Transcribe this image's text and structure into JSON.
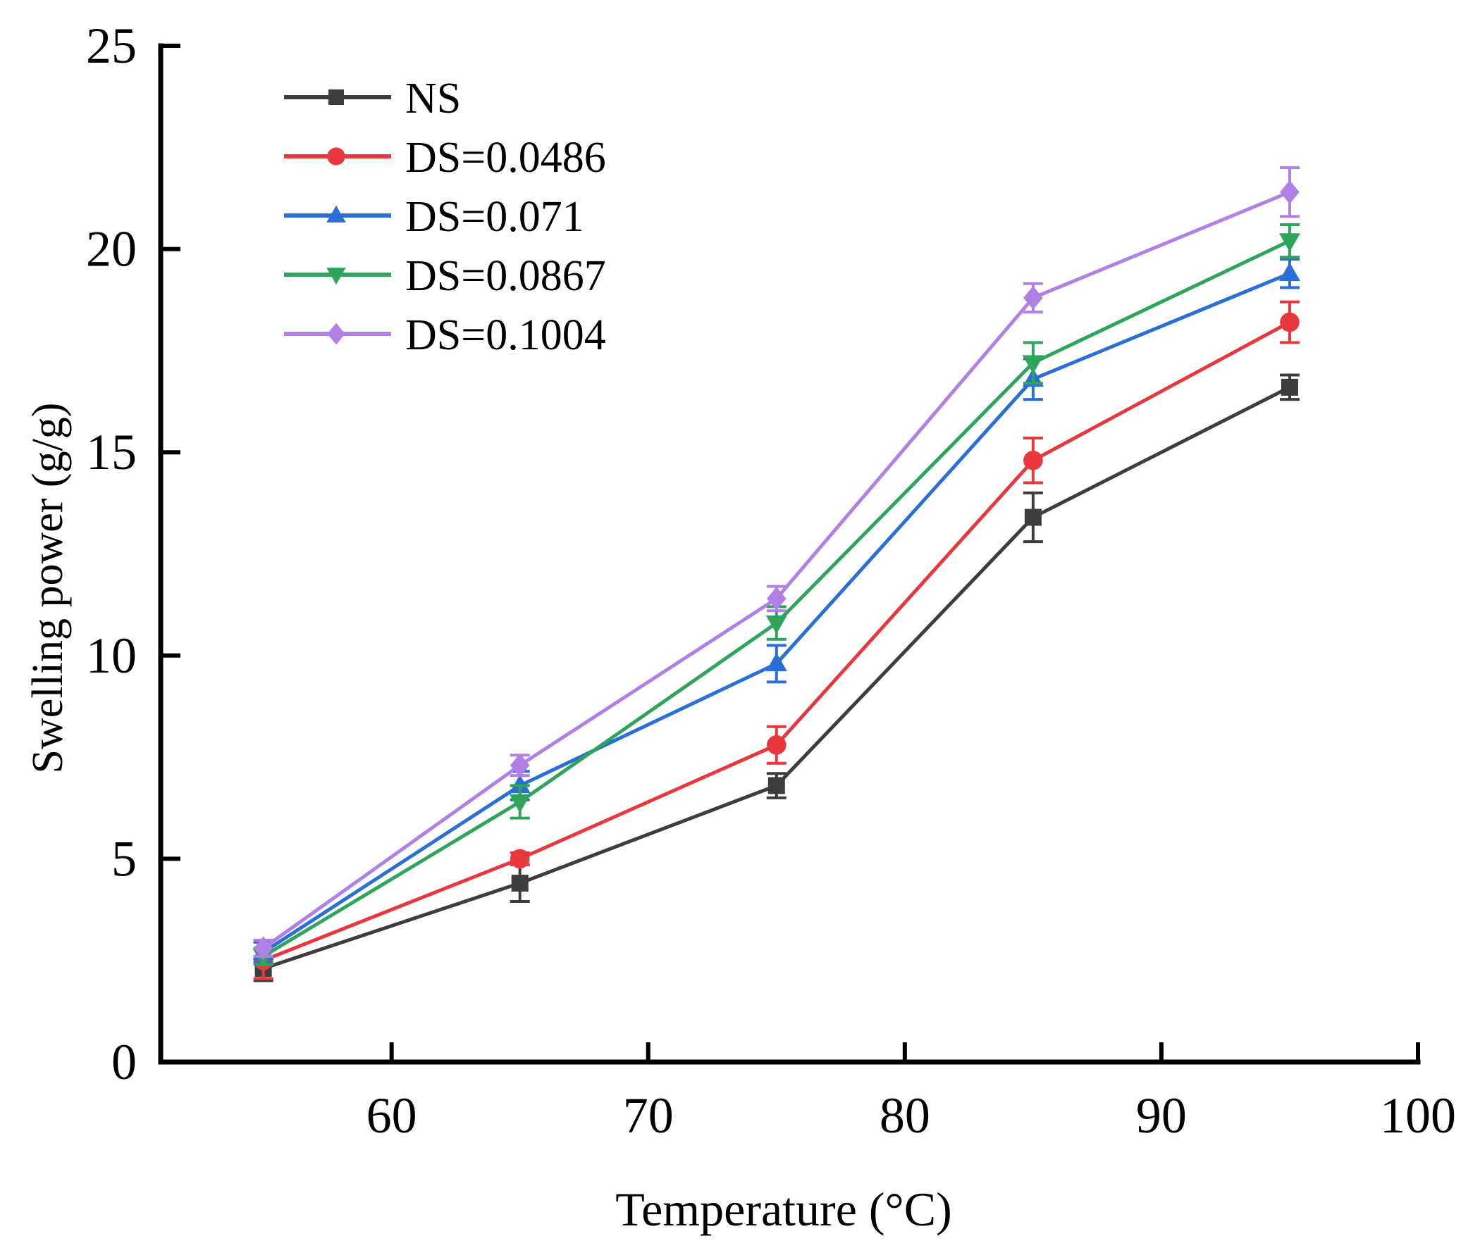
{
  "chart_data": {
    "type": "line",
    "title": "",
    "xlabel": "Temperature (°C)",
    "ylabel": "Swelling power (g/g)",
    "xlim": [
      51,
      100
    ],
    "ylim": [
      0,
      25
    ],
    "xticks": [
      60,
      70,
      80,
      90,
      100
    ],
    "yticks": [
      0,
      5,
      10,
      15,
      20,
      25
    ],
    "legend_position": "top-left",
    "grid": false,
    "x": [
      55,
      65,
      75,
      85,
      95
    ],
    "series": [
      {
        "name": "NS",
        "color": "#3d3d3d",
        "marker": "square",
        "values": [
          2.3,
          4.4,
          6.8,
          13.4,
          16.6
        ],
        "errors": [
          0.3,
          0.45,
          0.3,
          0.6,
          0.3
        ]
      },
      {
        "name": "DS=0.0486",
        "color": "#e8383d",
        "marker": "circle",
        "values": [
          2.5,
          5.0,
          7.8,
          14.8,
          18.2
        ],
        "errors": [
          0.45,
          0.15,
          0.45,
          0.55,
          0.5
        ]
      },
      {
        "name": "DS=0.071",
        "color": "#2a6fd6",
        "marker": "triangle-up",
        "values": [
          2.7,
          6.8,
          9.8,
          16.8,
          19.4
        ],
        "errors": [
          0.25,
          0.35,
          0.45,
          0.5,
          0.35
        ]
      },
      {
        "name": "DS=0.0867",
        "color": "#2ea55a",
        "marker": "triangle-down",
        "values": [
          2.6,
          6.4,
          10.8,
          17.2,
          20.2
        ],
        "errors": [
          0.2,
          0.4,
          0.4,
          0.5,
          0.4
        ]
      },
      {
        "name": "DS=0.1004",
        "color": "#b180e6",
        "marker": "diamond",
        "values": [
          2.8,
          7.3,
          11.4,
          18.8,
          21.4
        ],
        "errors": [
          0.2,
          0.25,
          0.3,
          0.35,
          0.6
        ]
      }
    ]
  }
}
